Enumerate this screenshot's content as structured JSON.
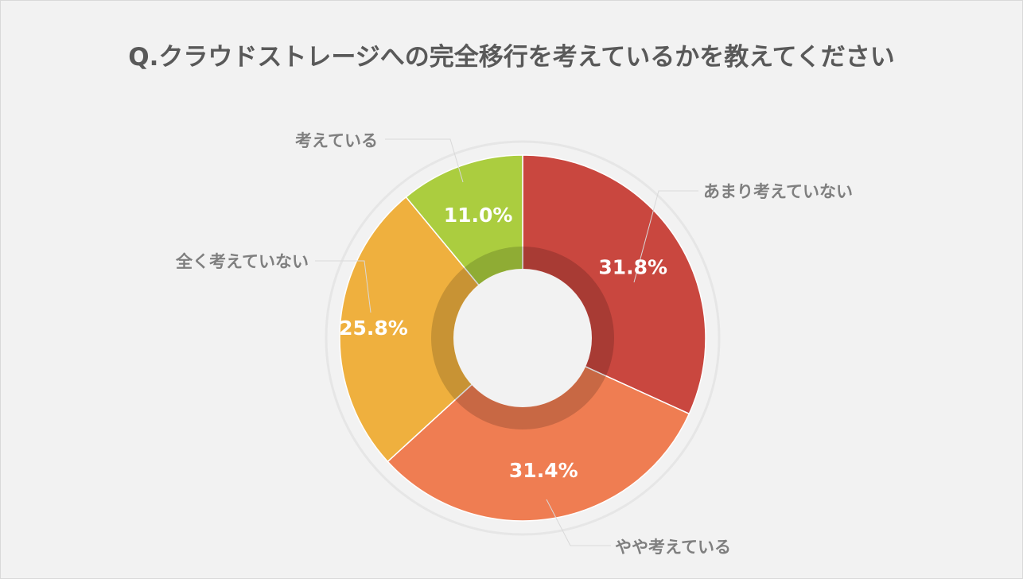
{
  "chart_data": {
    "type": "pie",
    "variant": "doughnut",
    "title": "Q.クラウドストレージへの完全移行を考えているかを教えてください",
    "categories": [
      "あまり考えていない",
      "やや考えている",
      "全く考えていない",
      "考えている"
    ],
    "values": [
      31.8,
      31.4,
      25.8,
      11.0
    ],
    "value_labels": [
      "31.8%",
      "31.4%",
      "25.8%",
      "11.0%"
    ],
    "colors": [
      "#c9473f",
      "#ef7d52",
      "#efb03e",
      "#abcd3f"
    ],
    "start_angle_deg": 0,
    "direction": "clockwise",
    "legend": "none",
    "labels_position": "outside-with-leader-lines"
  }
}
